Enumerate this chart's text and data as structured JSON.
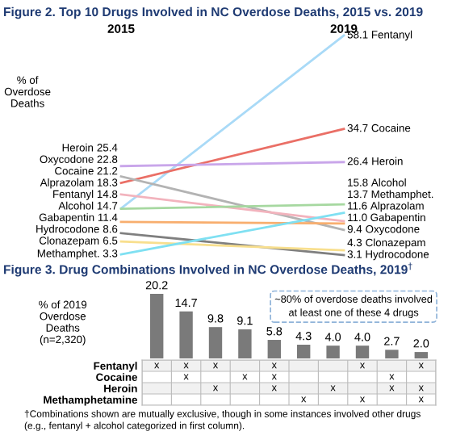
{
  "chart_data": [
    {
      "type": "line",
      "title": "Figure 2. Top 10 Drugs Involved in NC Overdose Deaths, 2015 vs. 2019",
      "ylabel": "% of\nOverdose\nDeaths",
      "categories": [
        "2015",
        "2019"
      ],
      "marker": "none",
      "series": [
        {
          "name": "Fentanyl",
          "color": "#a9daf7",
          "values": [
            14.8,
            58.1
          ],
          "value_labels": [
            "14.8",
            "58.1"
          ]
        },
        {
          "name": "Cocaine",
          "color": "#ea6f66",
          "values": [
            21.2,
            34.7
          ],
          "value_labels": [
            "21.2",
            "34.7"
          ]
        },
        {
          "name": "Heroin",
          "color": "#c9a6ea",
          "values": [
            25.4,
            26.4
          ],
          "value_labels": [
            "25.4",
            "26.4"
          ]
        },
        {
          "name": "Oxycodone",
          "color": "#b3b3b3",
          "values": [
            22.8,
            9.4
          ],
          "value_labels": [
            "22.8",
            "9.4"
          ]
        },
        {
          "name": "Alprazolam",
          "color": "#f2b3bd",
          "values": [
            18.3,
            11.6
          ],
          "value_labels": [
            "18.3",
            "11.6"
          ]
        },
        {
          "name": "Alcohol",
          "color": "#a6d8a0",
          "values": [
            14.7,
            15.8
          ],
          "value_labels": [
            "14.7",
            "15.8"
          ]
        },
        {
          "name": "Gabapentin",
          "color": "#f8ae6e",
          "values": [
            11.4,
            11.0
          ],
          "value_labels": [
            "11.4",
            "11.0"
          ]
        },
        {
          "name": "Hydrocodone",
          "color": "#7f7f7f",
          "values": [
            8.6,
            3.1
          ],
          "value_labels": [
            "8.6",
            "3.1"
          ]
        },
        {
          "name": "Clonazepam",
          "color": "#f8df8e",
          "values": [
            6.5,
            4.3
          ],
          "value_labels": [
            "6.5",
            "4.3"
          ]
        },
        {
          "name": "Methamphet.",
          "color": "#7fe0f2",
          "values": [
            3.3,
            13.7
          ],
          "value_labels": [
            "3.3",
            "13.7"
          ]
        }
      ]
    },
    {
      "type": "bar",
      "title": "Figure 3. Drug Combinations Involved in NC Overdose Deaths, 2019$^{†}$",
      "ylabel": "% of 2019\nOverdose\nDeaths\n(n=2,320)",
      "categories": [
        null,
        null,
        null,
        null,
        null,
        null,
        null,
        null,
        null,
        null
      ],
      "values": [
        20.2,
        14.7,
        9.8,
        9.1,
        5.8,
        4.3,
        4.0,
        4.0,
        2.7,
        2.0
      ],
      "value_labels": [
        "20.2",
        "14.7",
        "9.8",
        "9.1",
        "5.8",
        "4.3",
        "4.0",
        "4.0",
        "2.7",
        "2.0"
      ],
      "color": "#7a7a7a",
      "annotations": [
        "~80% of overdose deaths involved\nat least one of these 4 drugs"
      ]
    },
    {
      "type": "other",
      "categories": [
        null,
        null,
        null,
        null,
        null,
        null,
        null,
        null,
        null,
        null
      ],
      "y_categories": [
        "Fentanyl",
        "Cocaine",
        "Heroin",
        "Methamphetamine"
      ],
      "cell_labels": [
        [
          "x",
          "x",
          "x",
          null,
          "x",
          null,
          null,
          "x",
          null,
          "x"
        ],
        [
          null,
          "x",
          null,
          "x",
          "x",
          null,
          null,
          null,
          "x",
          null
        ],
        [
          null,
          null,
          "x",
          null,
          "x",
          null,
          "x",
          null,
          "x",
          "x"
        ],
        [
          null,
          null,
          null,
          null,
          null,
          "x",
          null,
          "x",
          null,
          "x"
        ]
      ],
      "annotations": [
        "†Combinations shown are mutually exclusive, though in some instances involved other drugs\n(e.g., fentanyl + alcohol categorized in first column)."
      ]
    }
  ]
}
